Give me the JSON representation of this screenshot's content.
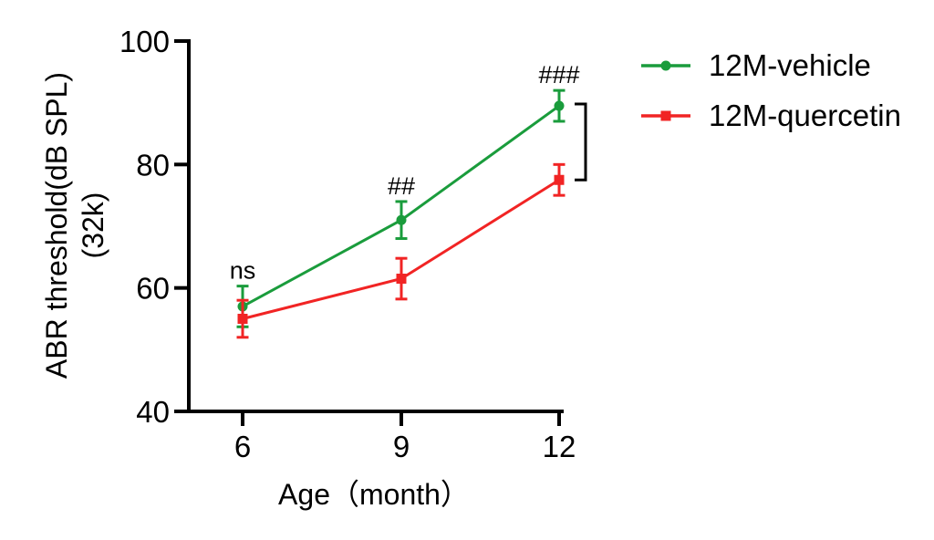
{
  "figure": {
    "background": "#ffffff",
    "axis_color": "#000000",
    "text_color": "#000000"
  },
  "chart_data": {
    "type": "line",
    "title": "",
    "xlabel": "Age（month）",
    "ylabel": "ABR threshold(dB SPL)",
    "ylabel_line2": "(32k)",
    "x": [
      6,
      9,
      12
    ],
    "xtick_labels": [
      "6",
      "9",
      "12"
    ],
    "yticks": [
      40,
      60,
      80,
      100
    ],
    "ytick_labels": [
      "40",
      "60",
      "80",
      "100"
    ],
    "ylim": [
      40,
      100
    ],
    "grid": false,
    "legend_position": "top-right",
    "series": [
      {
        "name": "12M-vehicle",
        "color": "#1a9c3c",
        "marker": "circle",
        "values": [
          57,
          71,
          89.5
        ],
        "errors": [
          3.3,
          3,
          2.5
        ]
      },
      {
        "name": "12M-quercetin",
        "color": "#f12424",
        "marker": "square",
        "values": [
          55,
          61.5,
          77.5
        ],
        "errors": [
          3,
          3.3,
          2.5
        ]
      }
    ],
    "annotations": [
      {
        "text": "ns",
        "x": 6
      },
      {
        "text": "##",
        "x": 9
      },
      {
        "text": "###",
        "x": 12
      }
    ],
    "comparison_bracket": {
      "x": 12,
      "between": [
        "12M-vehicle",
        "12M-quercetin"
      ]
    }
  }
}
